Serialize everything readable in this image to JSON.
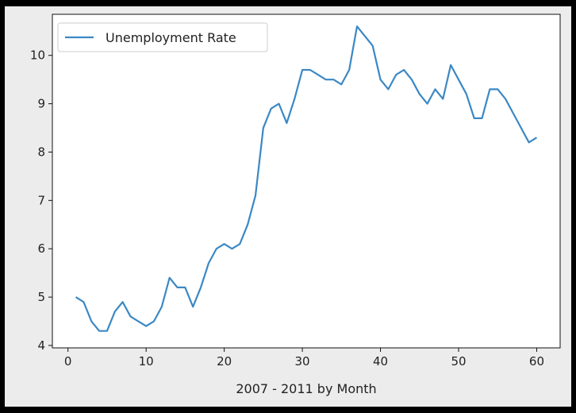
{
  "chart_data": {
    "type": "line",
    "title": "",
    "xlabel": "2007 - 2011 by Month",
    "ylabel": "",
    "xlim": [
      -2,
      63
    ],
    "ylim": [
      3.95,
      10.85
    ],
    "xticks": [
      0,
      10,
      20,
      30,
      40,
      50,
      60
    ],
    "yticks": [
      4,
      5,
      6,
      7,
      8,
      9,
      10
    ],
    "grid": false,
    "legend": "top-left",
    "series": [
      {
        "name": "Unemployment Rate",
        "color": "#3b88c4",
        "x": [
          1,
          2,
          3,
          4,
          5,
          6,
          7,
          8,
          9,
          10,
          11,
          12,
          13,
          14,
          15,
          16,
          17,
          18,
          19,
          20,
          21,
          22,
          23,
          24,
          25,
          26,
          27,
          28,
          29,
          30,
          31,
          32,
          33,
          34,
          35,
          36,
          37,
          38,
          39,
          40,
          41,
          42,
          43,
          44,
          45,
          46,
          47,
          48,
          49,
          50,
          51,
          52,
          53,
          54,
          55,
          56,
          57,
          58,
          59,
          60
        ],
        "values": [
          5.0,
          4.9,
          4.5,
          4.3,
          4.3,
          4.7,
          4.9,
          4.6,
          4.5,
          4.4,
          4.5,
          4.8,
          5.4,
          5.2,
          5.2,
          4.8,
          5.2,
          5.7,
          6.0,
          6.1,
          6.0,
          6.1,
          6.5,
          7.1,
          8.5,
          8.9,
          9.0,
          8.6,
          9.1,
          9.7,
          9.7,
          9.6,
          9.5,
          9.5,
          9.4,
          9.7,
          10.6,
          10.4,
          10.2,
          9.5,
          9.3,
          9.6,
          9.7,
          9.5,
          9.2,
          9.0,
          9.3,
          9.1,
          9.8,
          9.5,
          9.2,
          8.7,
          8.7,
          9.3,
          9.3,
          9.1,
          8.8,
          8.5,
          8.2,
          8.3
        ]
      }
    ]
  }
}
